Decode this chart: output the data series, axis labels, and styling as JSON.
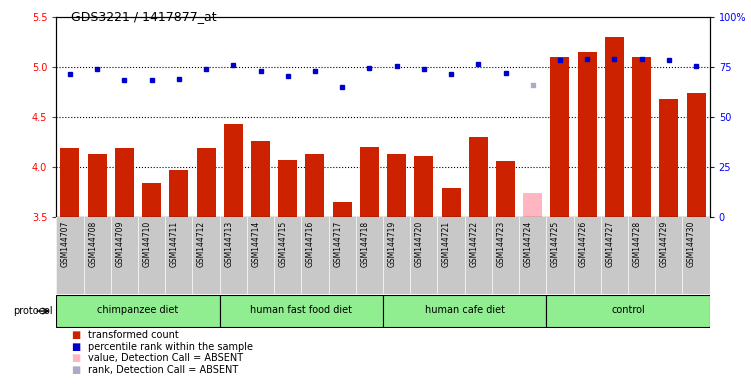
{
  "title": "GDS3221 / 1417877_at",
  "samples": [
    "GSM144707",
    "GSM144708",
    "GSM144709",
    "GSM144710",
    "GSM144711",
    "GSM144712",
    "GSM144713",
    "GSM144714",
    "GSM144715",
    "GSM144716",
    "GSM144717",
    "GSM144718",
    "GSM144719",
    "GSM144720",
    "GSM144721",
    "GSM144722",
    "GSM144723",
    "GSM144724",
    "GSM144725",
    "GSM144726",
    "GSM144727",
    "GSM144728",
    "GSM144729",
    "GSM144730"
  ],
  "bar_values": [
    4.19,
    4.13,
    4.19,
    3.84,
    3.97,
    4.19,
    4.43,
    4.26,
    4.07,
    4.13,
    3.65,
    4.2,
    4.13,
    4.11,
    3.79,
    4.3,
    4.06,
    3.74,
    5.1,
    5.15,
    5.3,
    5.1,
    4.68,
    4.74
  ],
  "bar_absent": [
    false,
    false,
    false,
    false,
    false,
    false,
    false,
    false,
    false,
    false,
    false,
    false,
    false,
    false,
    false,
    false,
    false,
    true,
    false,
    false,
    false,
    false,
    false,
    false
  ],
  "rank_values": [
    4.93,
    4.98,
    4.87,
    4.87,
    4.88,
    4.98,
    5.02,
    4.96,
    4.91,
    4.96,
    4.8,
    4.99,
    5.01,
    4.98,
    4.93,
    5.03,
    4.94,
    4.82,
    5.07,
    5.08,
    5.08,
    5.08,
    5.07,
    5.01
  ],
  "rank_absent": [
    false,
    false,
    false,
    false,
    false,
    false,
    false,
    false,
    false,
    false,
    false,
    false,
    false,
    false,
    false,
    false,
    false,
    true,
    false,
    false,
    false,
    false,
    false,
    false
  ],
  "groups": [
    {
      "label": "chimpanzee diet",
      "start": 0,
      "end": 6
    },
    {
      "label": "human fast food diet",
      "start": 6,
      "end": 12
    },
    {
      "label": "human cafe diet",
      "start": 12,
      "end": 18
    },
    {
      "label": "control",
      "start": 18,
      "end": 24
    }
  ],
  "left_ylim": [
    3.5,
    5.5
  ],
  "left_yticks": [
    3.5,
    4.0,
    4.5,
    5.0,
    5.5
  ],
  "right_ylim": [
    0,
    100
  ],
  "right_yticks": [
    0,
    25,
    50,
    75,
    100
  ],
  "right_yticklabels": [
    "0",
    "25",
    "50",
    "75",
    "100%"
  ],
  "bar_color": "#CC2200",
  "bar_absent_color": "#FFB6C1",
  "rank_color": "#0000CC",
  "rank_absent_color": "#AAAACC",
  "xlabel_bg_color": "#C8C8C8",
  "group_color": "#90EE90",
  "legend_items": [
    {
      "color": "#CC2200",
      "label": "transformed count"
    },
    {
      "color": "#0000CC",
      "label": "percentile rank within the sample"
    },
    {
      "color": "#FFB6C1",
      "label": "value, Detection Call = ABSENT"
    },
    {
      "color": "#AAAACC",
      "label": "rank, Detection Call = ABSENT"
    }
  ]
}
